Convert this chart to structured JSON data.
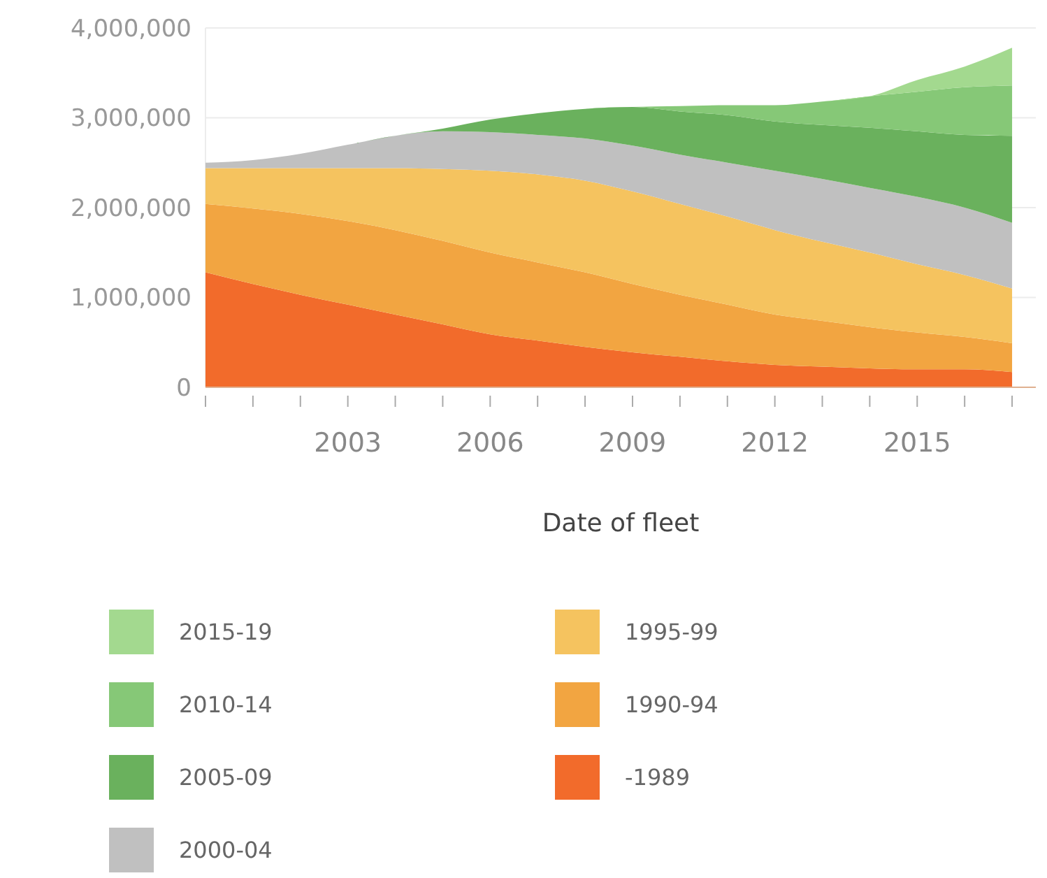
{
  "chart_data": {
    "type": "area",
    "stacked": true,
    "xlabel": "Date of fleet",
    "x": [
      2000,
      2001,
      2002,
      2003,
      2004,
      2005,
      2006,
      2007,
      2008,
      2009,
      2010,
      2011,
      2012,
      2013,
      2014,
      2015,
      2016,
      2017
    ],
    "xlim": [
      2000,
      2017.5
    ],
    "xticks": [
      {
        "value": 2000,
        "label": null
      },
      {
        "value": 2001,
        "label": null
      },
      {
        "value": 2002,
        "label": null
      },
      2003,
      {
        "value": 2004,
        "label": null
      },
      {
        "value": 2005,
        "label": null
      },
      2006,
      {
        "value": 2007,
        "label": null
      },
      {
        "value": 2008,
        "label": null
      },
      2009,
      {
        "value": 2010,
        "label": null
      },
      {
        "value": 2011,
        "label": null
      },
      2012,
      {
        "value": 2013,
        "label": null
      },
      {
        "value": 2014,
        "label": null
      },
      2015,
      {
        "value": 2016,
        "label": null
      },
      {
        "value": 2017,
        "label": null
      }
    ],
    "ylim": [
      0,
      4000000
    ],
    "yticks": [
      {
        "value": 0,
        "label": "0"
      },
      {
        "value": 1000000,
        "label": "1,000,000"
      },
      {
        "value": 2000000,
        "label": "2,000,000"
      },
      {
        "value": 3000000,
        "label": "3,000,000"
      },
      {
        "value": 4000000,
        "label": "4,000,000"
      }
    ],
    "grid": "y",
    "legend": "bottom",
    "series": [
      {
        "name": "-1989",
        "color": "#f26b2b",
        "values": [
          1280000,
          1150000,
          1030000,
          920000,
          810000,
          700000,
          590000,
          520000,
          450000,
          390000,
          340000,
          290000,
          250000,
          230000,
          210000,
          200000,
          200000,
          170000
        ]
      },
      {
        "name": "1990-94",
        "color": "#f2a541",
        "values": [
          760000,
          840000,
          900000,
          930000,
          940000,
          930000,
          910000,
          870000,
          830000,
          760000,
          690000,
          630000,
          560000,
          510000,
          460000,
          410000,
          360000,
          320000
        ]
      },
      {
        "name": "1995-99",
        "color": "#f5c35f",
        "values": [
          400000,
          450000,
          510000,
          590000,
          690000,
          800000,
          910000,
          980000,
          1020000,
          1030000,
          1010000,
          980000,
          940000,
          880000,
          830000,
          760000,
          690000,
          610000
        ]
      },
      {
        "name": "2000-04",
        "color": "#c0c0c0",
        "values": [
          60000,
          90000,
          160000,
          260000,
          360000,
          420000,
          430000,
          440000,
          470000,
          510000,
          550000,
          600000,
          660000,
          700000,
          720000,
          750000,
          750000,
          730000
        ]
      },
      {
        "name": "2005-09",
        "color": "#6ab15d",
        "values": [
          0,
          0,
          0,
          0,
          0,
          30000,
          140000,
          240000,
          330000,
          430000,
          480000,
          530000,
          550000,
          600000,
          670000,
          730000,
          810000,
          970000
        ]
      },
      {
        "name": "2010-14",
        "color": "#86c877",
        "values": [
          0,
          0,
          0,
          0,
          0,
          0,
          0,
          0,
          0,
          0,
          60000,
          110000,
          180000,
          260000,
          350000,
          440000,
          530000,
          560000
        ]
      },
      {
        "name": "2015-19",
        "color": "#a3d98f",
        "values": [
          0,
          0,
          0,
          0,
          0,
          0,
          0,
          0,
          0,
          0,
          0,
          0,
          0,
          0,
          0,
          130000,
          230000,
          420000
        ]
      }
    ]
  }
}
